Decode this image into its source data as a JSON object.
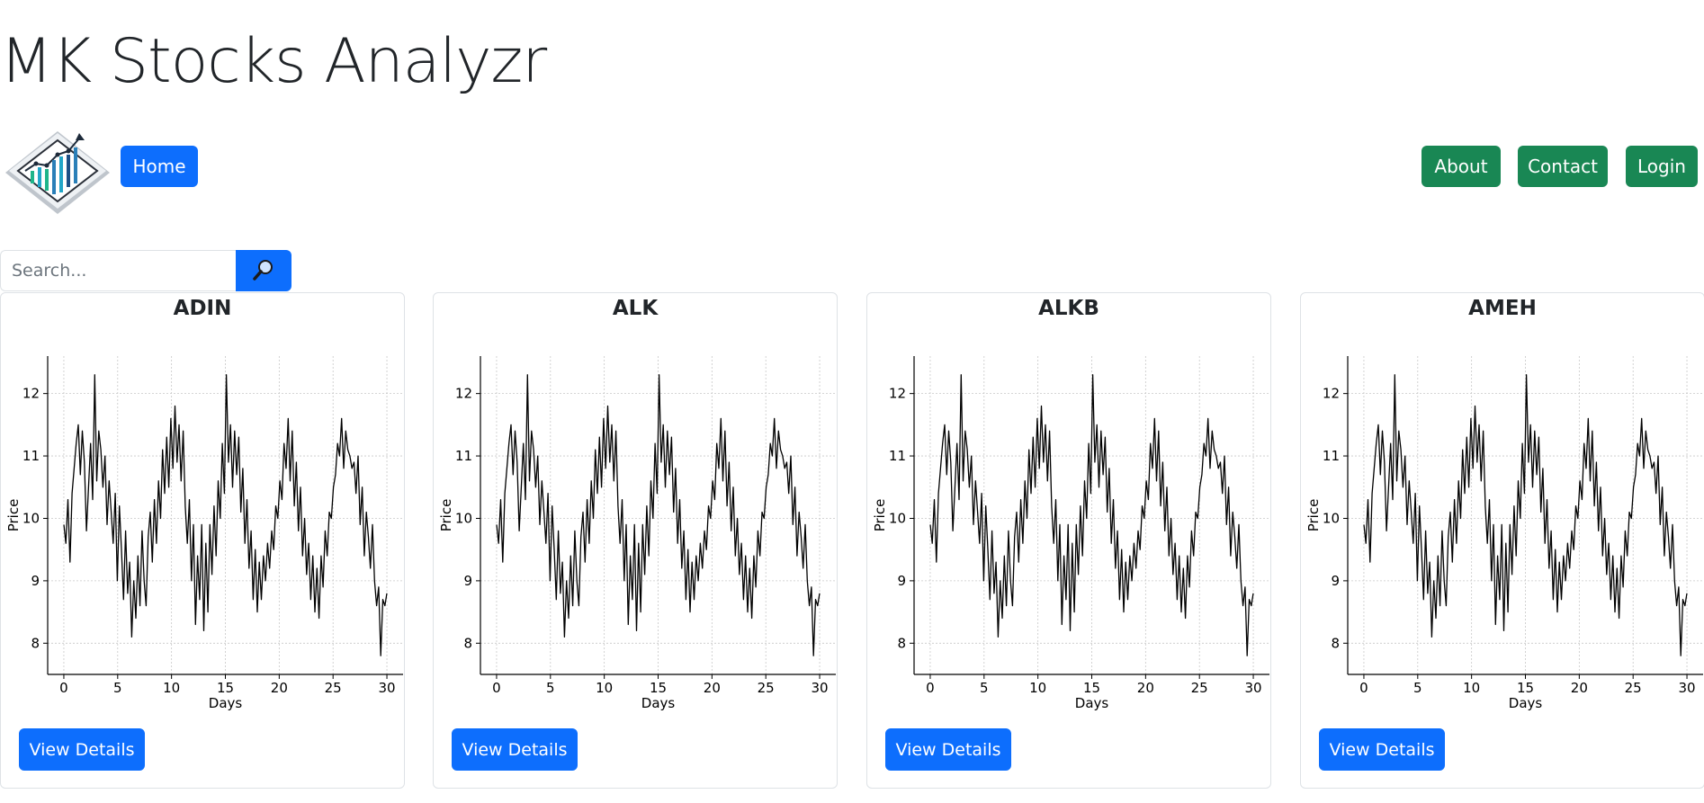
{
  "app": {
    "title": "MK Stocks Analyzr"
  },
  "nav": {
    "home_label": "Home",
    "about_label": "About",
    "contact_label": "Contact",
    "login_label": "Login"
  },
  "search": {
    "placeholder": "Search...",
    "button_icon": "search-icon"
  },
  "colors": {
    "primary": "#0d6efd",
    "success": "#198754",
    "border": "#dee2e6",
    "line": "#000000"
  },
  "cards": [
    {
      "ticker": "ADIN",
      "button_label": "View Details"
    },
    {
      "ticker": "ALK",
      "button_label": "View Details"
    },
    {
      "ticker": "ALKB",
      "button_label": "View Details"
    },
    {
      "ticker": "AMEH",
      "button_label": "View Details"
    }
  ],
  "chart_data": [
    {
      "type": "line",
      "title": "ADIN",
      "xlabel": "Days",
      "ylabel": "Price",
      "xlim": [
        -1.5,
        31.5
      ],
      "ylim": [
        7.5,
        12.6
      ],
      "xticks": [
        0,
        5,
        10,
        15,
        20,
        25,
        30
      ],
      "yticks": [
        8,
        9,
        10,
        11,
        12
      ],
      "grid": true,
      "series": [
        {
          "x_start": 0,
          "x_end": 30,
          "values": [
            9.9,
            9.6,
            10.3,
            9.3,
            10.4,
            10.8,
            11.2,
            11.5,
            10.7,
            11.4,
            10.9,
            9.8,
            10.5,
            11.2,
            10.3,
            12.3,
            10.6,
            11.4,
            11.1,
            10.5,
            11.0,
            9.9,
            10.6,
            10.1,
            9.6,
            10.4,
            9.0,
            10.2,
            9.5,
            8.7,
            9.8,
            8.8,
            9.3,
            8.1,
            9.0,
            8.4,
            9.4,
            8.6,
            9.8,
            9.0,
            8.6,
            9.7,
            10.1,
            9.3,
            10.3,
            9.6,
            10.6,
            10.0,
            11.1,
            10.4,
            11.3,
            10.5,
            11.6,
            10.8,
            11.8,
            10.9,
            11.5,
            10.6,
            11.4,
            10.2,
            9.6,
            10.3,
            9.0,
            9.9,
            8.3,
            9.4,
            8.7,
            9.9,
            8.2,
            9.6,
            8.5,
            9.9,
            9.1,
            10.2,
            9.4,
            10.6,
            10.0,
            11.2,
            10.4,
            12.3,
            10.9,
            11.5,
            10.5,
            11.4,
            10.7,
            11.3,
            10.1,
            10.8,
            9.6,
            10.3,
            9.2,
            9.8,
            8.7,
            9.5,
            8.5,
            9.3,
            8.7,
            9.4,
            9.0,
            9.6,
            9.2,
            9.8,
            9.5,
            10.2,
            10.0,
            10.6,
            10.3,
            11.2,
            10.8,
            11.6,
            10.6,
            11.4,
            10.2,
            10.9,
            9.8,
            10.5,
            9.4,
            10.0,
            9.1,
            9.6,
            8.7,
            9.4,
            8.5,
            9.2,
            8.4,
            9.4,
            8.9,
            9.8,
            9.4,
            10.1,
            10.0,
            10.5,
            10.7,
            11.2,
            11.0,
            11.6,
            10.8,
            11.4,
            11.1,
            11.0,
            10.8,
            10.9,
            10.4,
            11.0,
            9.9,
            10.5,
            9.4,
            10.1,
            9.7,
            9.2,
            9.9,
            9.0,
            8.6,
            8.9,
            7.8,
            8.7,
            8.6,
            8.8
          ]
        }
      ]
    },
    {
      "type": "line",
      "title": "ALK",
      "xlabel": "Days",
      "ylabel": "Price",
      "xlim": [
        -1.5,
        31.5
      ],
      "ylim": [
        7.5,
        12.6
      ],
      "xticks": [
        0,
        5,
        10,
        15,
        20,
        25,
        30
      ],
      "yticks": [
        8,
        9,
        10,
        11,
        12
      ],
      "grid": true,
      "series": [
        {
          "x_start": 0,
          "x_end": 30,
          "values": [
            9.9,
            9.6,
            10.3,
            9.3,
            10.4,
            10.8,
            11.2,
            11.5,
            10.7,
            11.4,
            10.9,
            9.8,
            10.5,
            11.2,
            10.3,
            12.3,
            10.6,
            11.4,
            11.1,
            10.5,
            11.0,
            9.9,
            10.6,
            10.1,
            9.6,
            10.4,
            9.0,
            10.2,
            9.5,
            8.7,
            9.8,
            8.8,
            9.3,
            8.1,
            9.0,
            8.4,
            9.4,
            8.6,
            9.8,
            9.0,
            8.6,
            9.7,
            10.1,
            9.3,
            10.3,
            9.6,
            10.6,
            10.0,
            11.1,
            10.4,
            11.3,
            10.5,
            11.6,
            10.8,
            11.8,
            10.9,
            11.5,
            10.6,
            11.4,
            10.2,
            9.6,
            10.3,
            9.0,
            9.9,
            8.3,
            9.4,
            8.7,
            9.9,
            8.2,
            9.6,
            8.5,
            9.9,
            9.1,
            10.2,
            9.4,
            10.6,
            10.0,
            11.2,
            10.4,
            12.3,
            10.9,
            11.5,
            10.5,
            11.4,
            10.7,
            11.3,
            10.1,
            10.8,
            9.6,
            10.3,
            9.2,
            9.8,
            8.7,
            9.5,
            8.5,
            9.3,
            8.7,
            9.4,
            9.0,
            9.6,
            9.2,
            9.8,
            9.5,
            10.2,
            10.0,
            10.6,
            10.3,
            11.2,
            10.8,
            11.6,
            10.6,
            11.4,
            10.2,
            10.9,
            9.8,
            10.5,
            9.4,
            10.0,
            9.1,
            9.6,
            8.7,
            9.4,
            8.5,
            9.2,
            8.4,
            9.4,
            8.9,
            9.8,
            9.4,
            10.1,
            10.0,
            10.5,
            10.7,
            11.2,
            11.0,
            11.6,
            10.8,
            11.4,
            11.1,
            11.0,
            10.8,
            10.9,
            10.4,
            11.0,
            9.9,
            10.5,
            9.4,
            10.1,
            9.7,
            9.2,
            9.9,
            9.0,
            8.6,
            8.9,
            7.8,
            8.7,
            8.6,
            8.8
          ]
        }
      ]
    },
    {
      "type": "line",
      "title": "ALKB",
      "xlabel": "Days",
      "ylabel": "Price",
      "xlim": [
        -1.5,
        31.5
      ],
      "ylim": [
        7.5,
        12.6
      ],
      "xticks": [
        0,
        5,
        10,
        15,
        20,
        25,
        30
      ],
      "yticks": [
        8,
        9,
        10,
        11,
        12
      ],
      "grid": true,
      "series": [
        {
          "x_start": 0,
          "x_end": 30,
          "values": [
            9.9,
            9.6,
            10.3,
            9.3,
            10.4,
            10.8,
            11.2,
            11.5,
            10.7,
            11.4,
            10.9,
            9.8,
            10.5,
            11.2,
            10.3,
            12.3,
            10.6,
            11.4,
            11.1,
            10.5,
            11.0,
            9.9,
            10.6,
            10.1,
            9.6,
            10.4,
            9.0,
            10.2,
            9.5,
            8.7,
            9.8,
            8.8,
            9.3,
            8.1,
            9.0,
            8.4,
            9.4,
            8.6,
            9.8,
            9.0,
            8.6,
            9.7,
            10.1,
            9.3,
            10.3,
            9.6,
            10.6,
            10.0,
            11.1,
            10.4,
            11.3,
            10.5,
            11.6,
            10.8,
            11.8,
            10.9,
            11.5,
            10.6,
            11.4,
            10.2,
            9.6,
            10.3,
            9.0,
            9.9,
            8.3,
            9.4,
            8.7,
            9.9,
            8.2,
            9.6,
            8.5,
            9.9,
            9.1,
            10.2,
            9.4,
            10.6,
            10.0,
            11.2,
            10.4,
            12.3,
            10.9,
            11.5,
            10.5,
            11.4,
            10.7,
            11.3,
            10.1,
            10.8,
            9.6,
            10.3,
            9.2,
            9.8,
            8.7,
            9.5,
            8.5,
            9.3,
            8.7,
            9.4,
            9.0,
            9.6,
            9.2,
            9.8,
            9.5,
            10.2,
            10.0,
            10.6,
            10.3,
            11.2,
            10.8,
            11.6,
            10.6,
            11.4,
            10.2,
            10.9,
            9.8,
            10.5,
            9.4,
            10.0,
            9.1,
            9.6,
            8.7,
            9.4,
            8.5,
            9.2,
            8.4,
            9.4,
            8.9,
            9.8,
            9.4,
            10.1,
            10.0,
            10.5,
            10.7,
            11.2,
            11.0,
            11.6,
            10.8,
            11.4,
            11.1,
            11.0,
            10.8,
            10.9,
            10.4,
            11.0,
            9.9,
            10.5,
            9.4,
            10.1,
            9.7,
            9.2,
            9.9,
            9.0,
            8.6,
            8.9,
            7.8,
            8.7,
            8.6,
            8.8
          ]
        }
      ]
    },
    {
      "type": "line",
      "title": "AMEH",
      "xlabel": "Days",
      "ylabel": "Price",
      "xlim": [
        -1.5,
        31.5
      ],
      "ylim": [
        7.5,
        12.6
      ],
      "xticks": [
        0,
        5,
        10,
        15,
        20,
        25,
        30
      ],
      "yticks": [
        8,
        9,
        10,
        11,
        12
      ],
      "grid": true,
      "series": [
        {
          "x_start": 0,
          "x_end": 30,
          "values": [
            9.9,
            9.6,
            10.3,
            9.3,
            10.4,
            10.8,
            11.2,
            11.5,
            10.7,
            11.4,
            10.9,
            9.8,
            10.5,
            11.2,
            10.3,
            12.3,
            10.6,
            11.4,
            11.1,
            10.5,
            11.0,
            9.9,
            10.6,
            10.1,
            9.6,
            10.4,
            9.0,
            10.2,
            9.5,
            8.7,
            9.8,
            8.8,
            9.3,
            8.1,
            9.0,
            8.4,
            9.4,
            8.6,
            9.8,
            9.0,
            8.6,
            9.7,
            10.1,
            9.3,
            10.3,
            9.6,
            10.6,
            10.0,
            11.1,
            10.4,
            11.3,
            10.5,
            11.6,
            10.8,
            11.8,
            10.9,
            11.5,
            10.6,
            11.4,
            10.2,
            9.6,
            10.3,
            9.0,
            9.9,
            8.3,
            9.4,
            8.7,
            9.9,
            8.2,
            9.6,
            8.5,
            9.9,
            9.1,
            10.2,
            9.4,
            10.6,
            10.0,
            11.2,
            10.4,
            12.3,
            10.9,
            11.5,
            10.5,
            11.4,
            10.7,
            11.3,
            10.1,
            10.8,
            9.6,
            10.3,
            9.2,
            9.8,
            8.7,
            9.5,
            8.5,
            9.3,
            8.7,
            9.4,
            9.0,
            9.6,
            9.2,
            9.8,
            9.5,
            10.2,
            10.0,
            10.6,
            10.3,
            11.2,
            10.8,
            11.6,
            10.6,
            11.4,
            10.2,
            10.9,
            9.8,
            10.5,
            9.4,
            10.0,
            9.1,
            9.6,
            8.7,
            9.4,
            8.5,
            9.2,
            8.4,
            9.4,
            8.9,
            9.8,
            9.4,
            10.1,
            10.0,
            10.5,
            10.7,
            11.2,
            11.0,
            11.6,
            10.8,
            11.4,
            11.1,
            11.0,
            10.8,
            10.9,
            10.4,
            11.0,
            9.9,
            10.5,
            9.4,
            10.1,
            9.7,
            9.2,
            9.9,
            9.0,
            8.6,
            8.9,
            7.8,
            8.7,
            8.6,
            8.8
          ]
        }
      ]
    }
  ]
}
